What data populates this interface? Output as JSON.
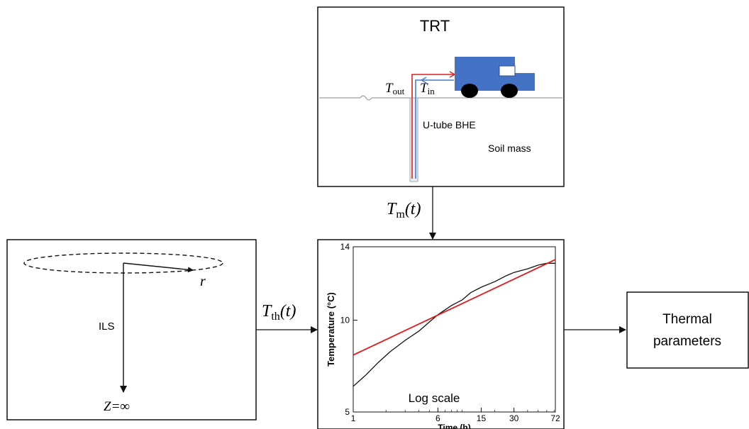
{
  "trt_box": {
    "title": "TRT",
    "t_out": "T",
    "t_out_sub": "out",
    "t_in": "T",
    "t_in_sub": "in",
    "ubhe_label": "U-tube BHE",
    "soil_label": "Soil mass",
    "truck_color": "#4472c4",
    "pipe_out_color": "#e02020",
    "pipe_in_color": "#4a7cc7"
  },
  "arrow_tm": {
    "sym": "T",
    "sub": "m",
    "arg": "(t)"
  },
  "arrow_tth": {
    "sym": "T",
    "sub": "th",
    "arg": "(t)"
  },
  "ils_box": {
    "r_label": "r",
    "ils_label": "ILS",
    "z_label": "Z=∞"
  },
  "output_box": {
    "line1": "Thermal",
    "line2": "parameters"
  },
  "chart_data": {
    "type": "line",
    "xscale": "log",
    "xlim": [
      1,
      72
    ],
    "ylim": [
      5,
      14
    ],
    "xticks": [
      "1",
      "6",
      "15",
      "30",
      "72"
    ],
    "xtick_values": [
      1,
      6,
      15,
      30,
      72
    ],
    "yticks": [
      "5",
      "10",
      "14"
    ],
    "ytick_values": [
      5,
      10,
      14
    ],
    "xlabel": "Time (h)",
    "ylabel": "Temperature (°C)",
    "annotation": "Log scale",
    "series": [
      {
        "color": "#111111",
        "x": [
          1,
          1.3,
          1.7,
          2.2,
          3.0,
          4.0,
          5.0,
          6.0,
          8.0,
          10,
          12,
          15,
          20,
          25,
          30,
          40,
          50,
          60,
          72
        ],
        "y": [
          6.4,
          7.0,
          7.7,
          8.3,
          8.9,
          9.4,
          9.9,
          10.3,
          10.8,
          11.1,
          11.5,
          11.8,
          12.1,
          12.4,
          12.6,
          12.8,
          13.0,
          13.1,
          13.1
        ]
      },
      {
        "color": "#e01b1b",
        "x": [
          1,
          72
        ],
        "y": [
          8.1,
          13.3
        ]
      }
    ]
  }
}
